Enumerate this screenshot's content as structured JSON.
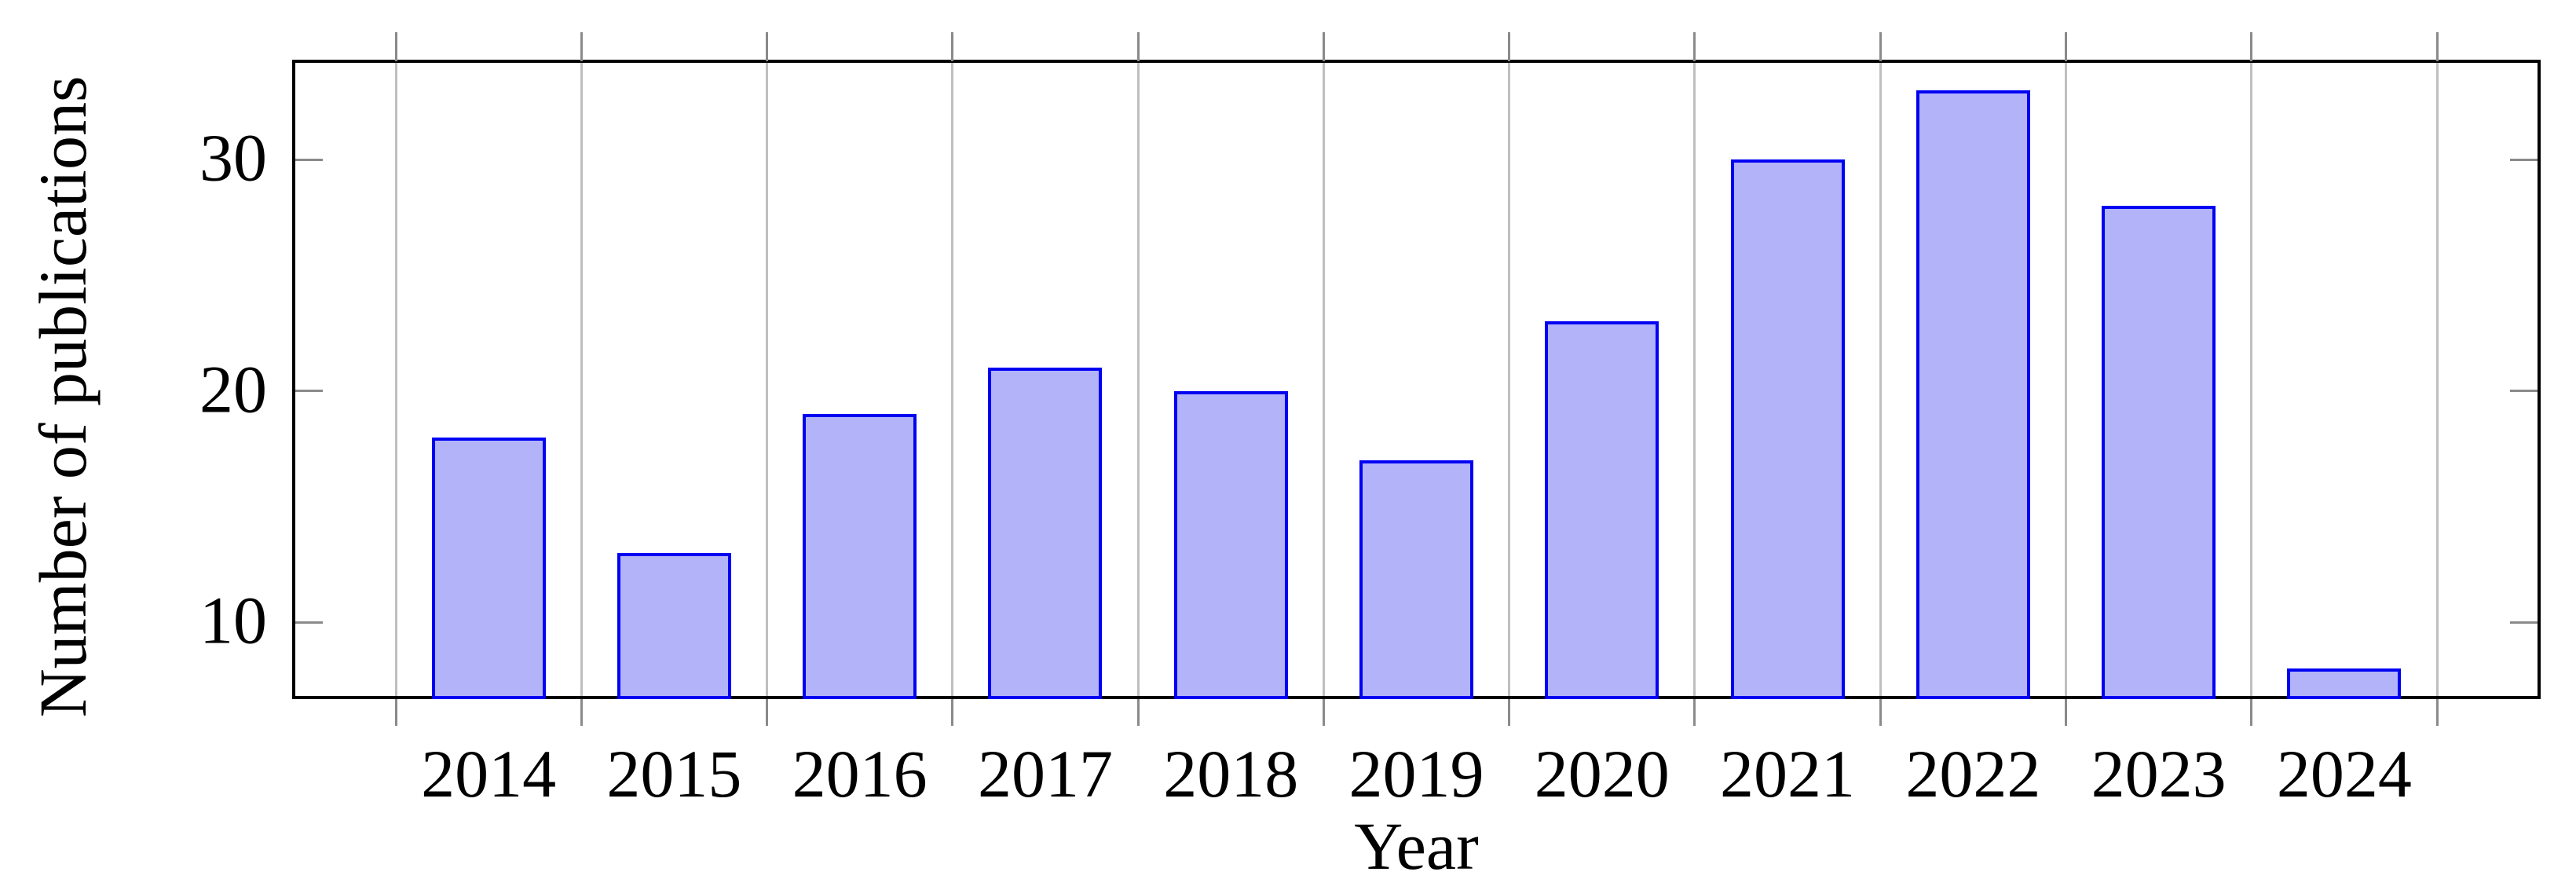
{
  "chart_data": {
    "type": "bar",
    "title": "",
    "xlabel": "Year",
    "ylabel": "Number of publications",
    "categories": [
      "2014",
      "2015",
      "2016",
      "2017",
      "2018",
      "2019",
      "2020",
      "2021",
      "2022",
      "2023",
      "2024"
    ],
    "values": [
      18,
      13,
      19,
      21,
      20,
      17,
      23,
      30,
      33,
      28,
      8
    ],
    "ylim": [
      6.75,
      34.25
    ],
    "yticks": [
      10,
      20,
      30
    ],
    "ytick_labels": [
      "10",
      "20",
      "30"
    ],
    "grid": "vertical-only",
    "grid_positions_note": "gridlines at category slot boundaries, 12 lines",
    "legend_position": "none",
    "colors": {
      "background": "#ffffff",
      "bar_fill": "#b3b3fa",
      "bar_border": "#0000f2",
      "axis_frame": "#000000",
      "grid_line": "#bfbfbf",
      "tick_mark": "#8a8a8a",
      "text": "#000000"
    }
  }
}
